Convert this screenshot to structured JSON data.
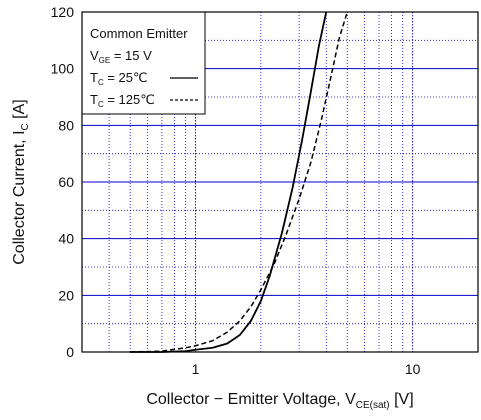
{
  "chart_data": {
    "type": "line",
    "xscale": "log",
    "xlim": [
      0.3,
      20
    ],
    "ylim": [
      0,
      120
    ],
    "xticks": [
      {
        "value": 1,
        "label": "1"
      },
      {
        "value": 10,
        "label": "10"
      }
    ],
    "yticks": [
      {
        "value": 0,
        "label": "0"
      },
      {
        "value": 20,
        "label": "20"
      },
      {
        "value": 40,
        "label": "40"
      },
      {
        "value": 60,
        "label": "60"
      },
      {
        "value": 80,
        "label": "80"
      },
      {
        "value": 100,
        "label": "100"
      },
      {
        "value": 120,
        "label": "120"
      }
    ],
    "xlabel": {
      "main": "Collector − Emitter Voltage, V",
      "sub": "CE(sat)",
      "unit": "[V]"
    },
    "ylabel": {
      "main": "Collector Current, I",
      "sub": "C",
      "unit": "[A]"
    },
    "grid": {
      "major_y_color": "#0000cc",
      "minor_color": "#0000cc",
      "major_x_color": "#0000cc"
    },
    "legend": {
      "placement": "top-left",
      "title": "Common Emitter",
      "condition": {
        "symbol": "V",
        "sub": "GE",
        "text": " = 15 V"
      },
      "entries": [
        {
          "symbol": "T",
          "sub": "C",
          "text": " =  25℃",
          "style": "solid"
        },
        {
          "symbol": "T",
          "sub": "C",
          "text": " = 125℃",
          "style": "dashed"
        }
      ]
    },
    "series": [
      {
        "style": "solid",
        "color": "#000000",
        "points": [
          [
            0.5,
            0
          ],
          [
            0.7,
            0
          ],
          [
            0.9,
            0.3
          ],
          [
            1.0,
            0.8
          ],
          [
            1.2,
            1.5
          ],
          [
            1.4,
            3
          ],
          [
            1.6,
            6
          ],
          [
            1.8,
            11
          ],
          [
            2.0,
            18
          ],
          [
            2.2,
            27
          ],
          [
            2.5,
            42
          ],
          [
            2.8,
            58
          ],
          [
            3.1,
            75
          ],
          [
            3.4,
            92
          ],
          [
            3.7,
            108
          ],
          [
            4.0,
            120
          ]
        ]
      },
      {
        "style": "dashed",
        "color": "#000000",
        "points": [
          [
            0.5,
            0
          ],
          [
            0.7,
            0.3
          ],
          [
            0.9,
            1.5
          ],
          [
            1.0,
            2.2
          ],
          [
            1.2,
            4
          ],
          [
            1.4,
            7
          ],
          [
            1.6,
            11
          ],
          [
            1.8,
            16
          ],
          [
            2.0,
            22
          ],
          [
            2.3,
            31
          ],
          [
            2.6,
            41
          ],
          [
            3.0,
            54
          ],
          [
            3.4,
            67
          ],
          [
            3.8,
            82
          ],
          [
            4.2,
            97
          ],
          [
            4.6,
            111
          ],
          [
            5.0,
            120
          ]
        ]
      }
    ]
  }
}
